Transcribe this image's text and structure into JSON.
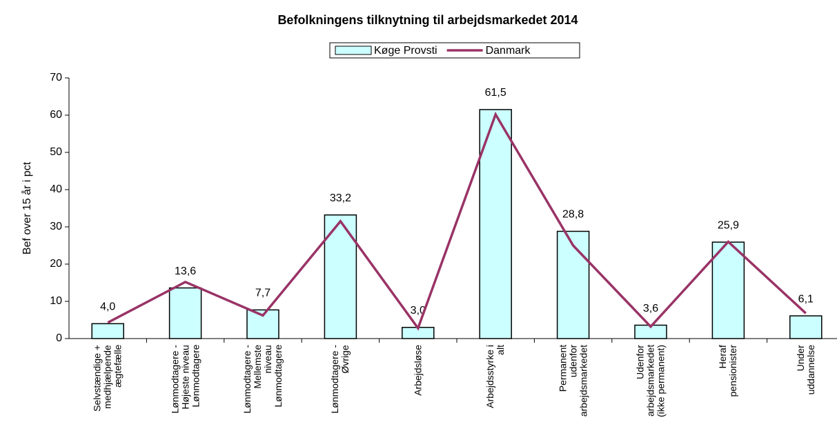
{
  "chart_data": {
    "type": "bar_line",
    "title": "Befolkningens tilknytning til arbejdsmarkedet 2014",
    "y_label": "Bef over 15 år i pct",
    "categories": [
      "Selvstændige +\nmedhjælpende\nægtefælle",
      "Lønmodtagere -\nHøjeste niveau\nLønmodtagere",
      "Lønmodtagere -\nMellemste\nniveau\nLønmodtagere",
      "Lønmodtagere -\nØvrige",
      "Arbejdsløse",
      "Arbejdsstyrke i\nalt",
      "Permanent\nudenfor\narbejdsmarkedet",
      "Udenfor\narbejdsmarkedet\n(ikke permanent)",
      "Heraf\npensionister",
      "Under\nuddannelse"
    ],
    "series": [
      {
        "name": "Køge Provsti",
        "type": "bar",
        "color": "#ccffff",
        "values": [
          4.0,
          13.6,
          7.7,
          33.2,
          3.0,
          61.5,
          28.8,
          3.6,
          25.9,
          6.1
        ],
        "value_labels": [
          "4,0",
          "13,6",
          "7,7",
          "33,2",
          "3,0",
          "61,5",
          "28,8",
          "3,6",
          "25,9",
          "6,1"
        ]
      },
      {
        "name": "Danmark",
        "type": "line",
        "color": "#993366",
        "values": [
          4.3,
          15.2,
          6.2,
          31.5,
          2.8,
          60.2,
          25.0,
          3.2,
          26.0,
          6.8
        ]
      }
    ],
    "ylim": [
      0,
      70
    ],
    "yticks": [
      0,
      10,
      20,
      30,
      40,
      50,
      60,
      70
    ],
    "legend": "top"
  }
}
